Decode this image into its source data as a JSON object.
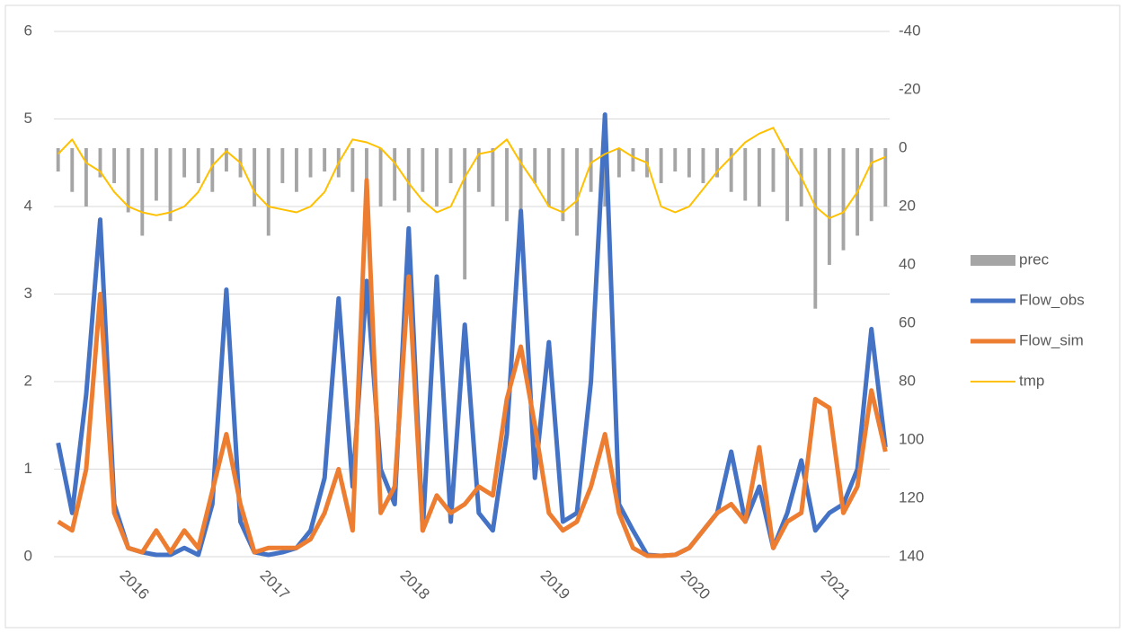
{
  "chart_data": {
    "type": "line",
    "x": [
      2015.55,
      2015.65,
      2015.75,
      2015.85,
      2015.95,
      2016.05,
      2016.15,
      2016.25,
      2016.35,
      2016.45,
      2016.55,
      2016.65,
      2016.75,
      2016.85,
      2016.95,
      2017.05,
      2017.15,
      2017.25,
      2017.35,
      2017.45,
      2017.55,
      2017.65,
      2017.75,
      2017.85,
      2017.95,
      2018.05,
      2018.15,
      2018.25,
      2018.35,
      2018.45,
      2018.55,
      2018.65,
      2018.75,
      2018.85,
      2018.95,
      2019.05,
      2019.15,
      2019.25,
      2019.35,
      2019.45,
      2019.55,
      2019.65,
      2019.75,
      2019.85,
      2019.95,
      2020.05,
      2020.15,
      2020.25,
      2020.35,
      2020.45,
      2020.55,
      2020.65,
      2020.75,
      2020.85,
      2020.95,
      2021.05,
      2021.15,
      2021.25,
      2021.35,
      2021.45
    ],
    "xlim": [
      2015.52,
      2021.48
    ],
    "xticks": [
      2016,
      2017,
      2018,
      2019,
      2020,
      2021
    ],
    "ylim": [
      0,
      6
    ],
    "yticks": [
      0,
      1,
      2,
      3,
      4,
      5,
      6
    ],
    "y2lim": [
      140,
      -40
    ],
    "y2ticks": [
      -40,
      -20,
      0,
      20,
      40,
      60,
      80,
      100,
      120,
      140
    ],
    "grid": true,
    "legend": "right",
    "series": [
      {
        "name": "prec",
        "type": "bar",
        "axis": "y2",
        "color": "#a5a5a5",
        "values": [
          8,
          15,
          20,
          10,
          12,
          22,
          30,
          18,
          25,
          10,
          12,
          15,
          8,
          10,
          20,
          30,
          12,
          15,
          10,
          8,
          10,
          15,
          25,
          20,
          18,
          22,
          15,
          20,
          12,
          45,
          15,
          20,
          25,
          35,
          12,
          20,
          25,
          30,
          15,
          20,
          10,
          8,
          10,
          12,
          8,
          10,
          12,
          10,
          15,
          18,
          20,
          15,
          25,
          20,
          55,
          40,
          35,
          30,
          25,
          20
        ]
      },
      {
        "name": "Flow_obs",
        "type": "line",
        "color": "#4472c4",
        "values": [
          1.3,
          0.5,
          1.85,
          3.85,
          0.6,
          0.1,
          0.05,
          0.02,
          0.02,
          0.1,
          0.02,
          0.6,
          3.05,
          0.4,
          0.05,
          0.02,
          0.05,
          0.1,
          0.3,
          0.9,
          2.95,
          0.8,
          3.15,
          1.0,
          0.6,
          3.75,
          0.3,
          3.2,
          0.4,
          2.65,
          0.5,
          0.3,
          1.4,
          3.95,
          0.9,
          2.45,
          0.4,
          0.5,
          2.0,
          5.05,
          0.6,
          0.3,
          0.02,
          0.01,
          0.02,
          0.1,
          0.3,
          0.5,
          1.2,
          0.4,
          0.8,
          0.1,
          0.5,
          1.1,
          0.3,
          0.5,
          0.6,
          1.0,
          2.6,
          1.25
        ]
      },
      {
        "name": "Flow_sim",
        "type": "line",
        "color": "#ed7d31",
        "values": [
          0.4,
          0.3,
          1.0,
          3.0,
          0.5,
          0.1,
          0.05,
          0.3,
          0.05,
          0.3,
          0.1,
          0.75,
          1.4,
          0.6,
          0.05,
          0.1,
          0.1,
          0.1,
          0.2,
          0.5,
          1.0,
          0.3,
          4.3,
          0.5,
          0.8,
          3.2,
          0.3,
          0.7,
          0.5,
          0.6,
          0.8,
          0.7,
          1.8,
          2.4,
          1.5,
          0.5,
          0.3,
          0.4,
          0.8,
          1.4,
          0.5,
          0.1,
          0.01,
          0.01,
          0.02,
          0.1,
          0.3,
          0.5,
          0.6,
          0.4,
          1.25,
          0.1,
          0.4,
          0.5,
          1.8,
          1.7,
          0.5,
          0.8,
          1.9,
          1.2
        ]
      },
      {
        "name": "tmp",
        "type": "line",
        "axis": "y2",
        "color": "#ffc000",
        "values": [
          2,
          -3,
          5,
          8,
          15,
          20,
          22,
          23,
          22,
          20,
          15,
          6,
          1,
          5,
          15,
          20,
          21,
          22,
          20,
          15,
          5,
          -3,
          -2,
          0,
          5,
          12,
          18,
          22,
          20,
          10,
          2,
          1,
          -3,
          5,
          12,
          20,
          22,
          18,
          5,
          2,
          0,
          3,
          5,
          20,
          22,
          20,
          14,
          8,
          3,
          -2,
          -5,
          -7,
          2,
          10,
          20,
          24,
          22,
          15,
          5,
          3
        ]
      }
    ]
  }
}
